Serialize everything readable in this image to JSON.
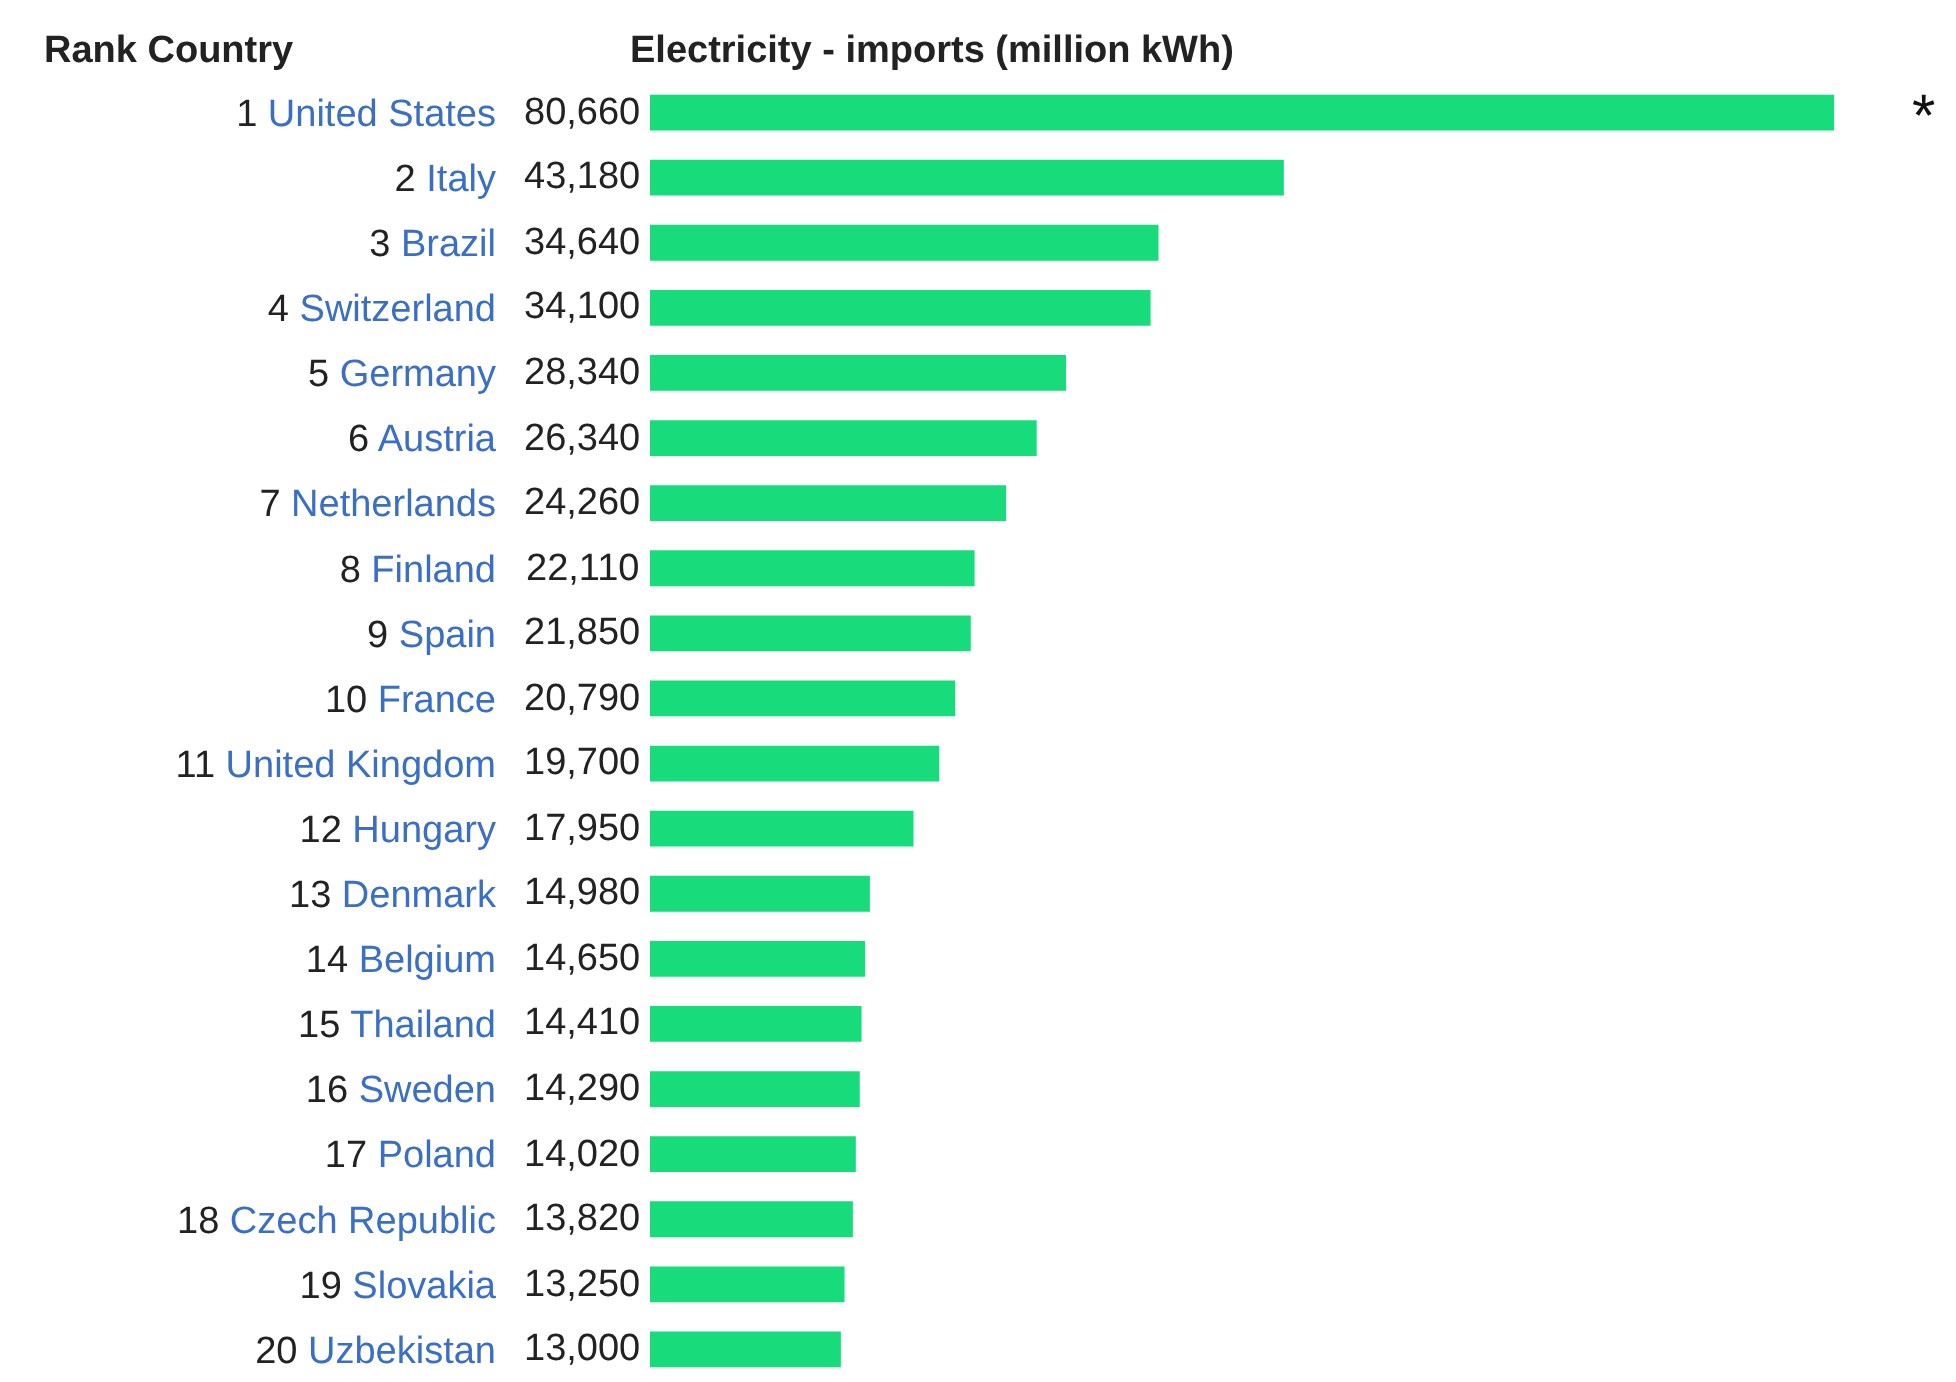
{
  "chart_data": {
    "type": "bar",
    "orientation": "horizontal",
    "title": "Electricity - imports (million kWh)",
    "ylabel": "Rank Country",
    "categories": [
      "1 United States",
      "2 Italy",
      "3 Brazil",
      "4 Switzerland",
      "5 Germany",
      "6 Austria",
      "7 Netherlands",
      "8 Finland",
      "9 Spain",
      "10 France",
      "11 United Kingdom",
      "12 Hungary",
      "13 Denmark",
      "14 Belgium",
      "15 Thailand",
      "16 Sweden",
      "17 Poland",
      "18 Czech Republic",
      "19 Slovakia",
      "20 Uzbekistan"
    ],
    "values": [
      80660,
      43180,
      34640,
      34100,
      28340,
      26340,
      24260,
      22110,
      21850,
      20790,
      19700,
      17950,
      14980,
      14650,
      14410,
      14290,
      14020,
      13820,
      13250,
      13000
    ],
    "value_labels": [
      "80,660",
      "43,180",
      "34,640",
      "34,100",
      "28,340",
      "26,340",
      "24,260",
      "22,110",
      "21,850",
      "20,790",
      "19,700",
      "17,950",
      "14,980",
      "14,650",
      "14,410",
      "14,290",
      "14,020",
      "13,820",
      "13,250",
      "13,000"
    ],
    "color": "#18dc7c",
    "annotations": [
      "*"
    ]
  }
}
